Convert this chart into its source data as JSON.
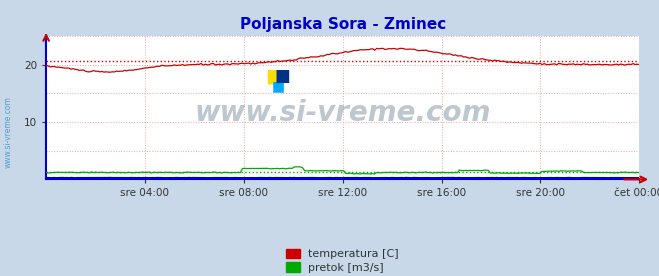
{
  "title": "Poljanska Sora - Zminec",
  "title_color": "#0000cc",
  "title_fontsize": 11,
  "fig_bg_color": "#c8d8e8",
  "plot_bg_color": "#ffffff",
  "x_tick_labels": [
    "sre 04:00",
    "sre 08:00",
    "sre 12:00",
    "sre 16:00",
    "sre 20:00",
    "čet 00:00"
  ],
  "ylim": [
    0,
    25
  ],
  "y_ticks": [
    10,
    20
  ],
  "grid_color": "#e8a8a8",
  "grid_color_v": "#e8a8a8",
  "avg_temp_value": 20.6,
  "avg_flow_value": 1.3,
  "temp_color": "#cc0000",
  "flow_color": "#00aa00",
  "height_color": "#0000cc",
  "watermark_color": "#8899aa",
  "watermark_text": "www.si-vreme.com",
  "legend_temp_label": "temperatura [C]",
  "legend_flow_label": "pretok [m3/s]",
  "sidebar_text": "www.si-vreme.com",
  "sidebar_color": "#4499cc",
  "spine_color": "#0000cc",
  "arrow_color": "#cc0000"
}
